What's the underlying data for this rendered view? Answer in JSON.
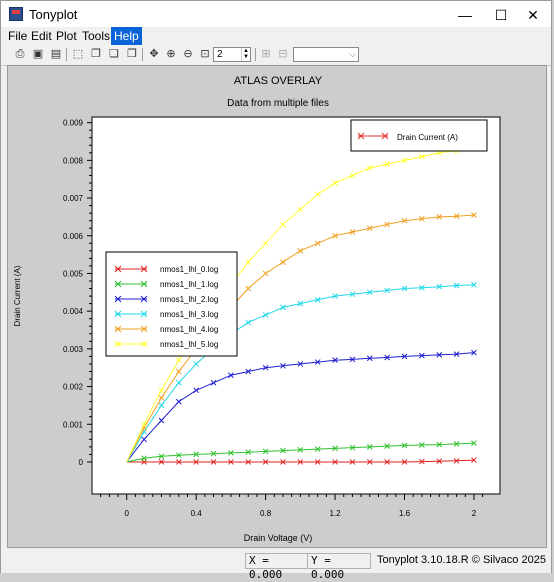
{
  "window": {
    "title": "Tonyplot"
  },
  "window_controls": {
    "minimize": "—",
    "maximize": "☐",
    "close": "✕"
  },
  "menu": [
    {
      "label": "File"
    },
    {
      "label": "Edit"
    },
    {
      "label": "Plot"
    },
    {
      "label": "Tools"
    },
    {
      "label": "Help",
      "active": true
    }
  ],
  "toolbar": {
    "icons": [
      "print-icon",
      "save-icon",
      "disk-icon",
      "new-plot-icon",
      "copy-icon",
      "overlay-icon",
      "stack-icon",
      "pan-icon",
      "zoom-in-icon",
      "zoom-out-icon",
      "zoom-box-icon"
    ],
    "frame_value": "2"
  },
  "status": {
    "x_readout": "X = 0.000",
    "y_readout": "Y = 0.000",
    "version": "Tonyplot 3.10.18.R © Silvaco 2025"
  },
  "chart_data": {
    "type": "line",
    "title": "ATLAS OVERLAY",
    "subtitle": "Data from multiple files",
    "xlabel": "Drain Voltage (V)",
    "ylabel": "Drain Current (A)",
    "xlim": [
      -0.2,
      2.15
    ],
    "ylim": [
      -0.00085,
      0.00915
    ],
    "xticks": [
      0,
      0.4,
      0.8,
      1.2,
      1.6,
      2
    ],
    "xtick_labels": [
      "0",
      "0.4",
      "0.8",
      "1.2",
      "1.6",
      "2"
    ],
    "yticks": [
      0,
      0.001,
      0.002,
      0.003,
      0.004,
      0.005,
      0.006,
      0.007,
      0.008,
      0.009
    ],
    "ytick_labels": [
      "0",
      "0.001",
      "0.002",
      "0.003",
      "0.004",
      "0.005",
      "0.006",
      "0.007",
      "0.008",
      "0.009"
    ],
    "legend_top": {
      "label": "Drain Current (A)",
      "color": "#e03030",
      "placement": "top-right"
    },
    "legend_position": "center-left",
    "x": [
      0,
      0.1,
      0.2,
      0.3,
      0.4,
      0.5,
      0.6,
      0.7,
      0.8,
      0.9,
      1.0,
      1.1,
      1.2,
      1.3,
      1.4,
      1.5,
      1.6,
      1.7,
      1.8,
      1.9,
      2.0
    ],
    "series": [
      {
        "name": "nmos1_lhl_0.log",
        "color": "#e02020",
        "values": [
          0,
          0,
          0,
          0,
          0,
          0,
          0,
          0,
          0,
          0,
          0,
          0,
          0,
          0,
          0,
          0,
          0,
          1e-05,
          2e-05,
          3e-05,
          5e-05
        ]
      },
      {
        "name": "nmos1_lhl_1.log",
        "color": "#30c030",
        "values": [
          0,
          0.0001,
          0.00015,
          0.00018,
          0.0002,
          0.00022,
          0.00024,
          0.00026,
          0.00028,
          0.0003,
          0.00032,
          0.00034,
          0.00036,
          0.00038,
          0.0004,
          0.00042,
          0.00044,
          0.00045,
          0.00046,
          0.00048,
          0.0005
        ]
      },
      {
        "name": "nmos1_lhl_2.log",
        "color": "#2020d0",
        "values": [
          0,
          0.0006,
          0.0011,
          0.0016,
          0.0019,
          0.0021,
          0.0023,
          0.0024,
          0.0025,
          0.00255,
          0.0026,
          0.00265,
          0.0027,
          0.00272,
          0.00275,
          0.00277,
          0.0028,
          0.00282,
          0.00284,
          0.00286,
          0.0029
        ]
      },
      {
        "name": "nmos1_lhl_3.log",
        "color": "#20d8e8",
        "values": [
          0,
          0.0008,
          0.0015,
          0.0021,
          0.0026,
          0.003,
          0.0034,
          0.0037,
          0.0039,
          0.0041,
          0.0042,
          0.0043,
          0.0044,
          0.00445,
          0.0045,
          0.00455,
          0.0046,
          0.00462,
          0.00465,
          0.00468,
          0.0047
        ]
      },
      {
        "name": "nmos1_lhl_4.log",
        "color": "#f0a020",
        "values": [
          0,
          0.0009,
          0.0017,
          0.0024,
          0.003,
          0.0036,
          0.0041,
          0.0046,
          0.005,
          0.0053,
          0.0056,
          0.0058,
          0.006,
          0.0061,
          0.0062,
          0.0063,
          0.0064,
          0.00645,
          0.0065,
          0.00652,
          0.00655
        ]
      },
      {
        "name": "nmos1_lhl_5.log",
        "color": "#ffff30",
        "values": [
          0,
          0.001,
          0.0019,
          0.0027,
          0.0034,
          0.0041,
          0.0047,
          0.0053,
          0.0058,
          0.0063,
          0.0067,
          0.0071,
          0.0074,
          0.0076,
          0.0078,
          0.0079,
          0.008,
          0.0081,
          0.0082,
          0.00825,
          0.0083
        ]
      }
    ]
  }
}
